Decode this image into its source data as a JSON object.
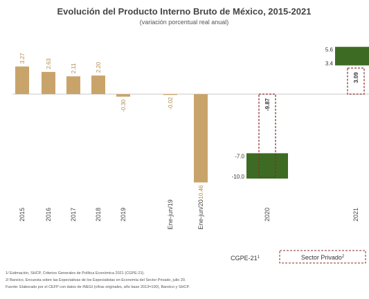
{
  "chart_data": {
    "type": "bar",
    "title": "Evolución del Producto Interno Bruto de México, 2015-2021",
    "subtitle": "(variación porcentual real anual)",
    "categories": [
      "2015",
      "2016",
      "2017",
      "2018",
      "2019",
      "Ene-jun/19",
      "Ene-jun/20",
      "2020",
      "2021"
    ],
    "historical": {
      "values": [
        3.27,
        2.63,
        2.11,
        2.2,
        -0.3,
        -0.02,
        -10.46
      ],
      "labels": [
        "3.27",
        "2.63",
        "2.11",
        "2.20",
        "-0.30",
        "-0.02",
        "-10.46"
      ],
      "color": "#c9a46a"
    },
    "cgpe_ranges": [
      {
        "category": "2020",
        "low": -10.0,
        "high": -7.0,
        "labels": [
          "-7.0",
          "-10.0"
        ]
      },
      {
        "category": "2021",
        "low": 3.4,
        "high": 5.6,
        "labels": [
          "5.6",
          "3.4"
        ]
      }
    ],
    "cgpe_color": "#3d6b23",
    "private_sector": [
      {
        "category": "2020",
        "value": -9.87,
        "label": "-9.87"
      },
      {
        "category": "2021",
        "value": 3.09,
        "label": "3.09"
      }
    ],
    "legend": {
      "cgpe": "CGPE-21",
      "cgpe_sup": "1",
      "private": "Sector Privado",
      "private_sup": "2"
    },
    "ylim": [
      -12,
      6
    ]
  },
  "notes": {
    "n1": "1/ Estimación, SHCP, Criterios Generales de Política Económica 2021 (CGPE-21).",
    "n2": "2/ Banxico, Encuesta sobre las Expectativas de los Especialistas en Economía del Sector Privado, julio 20.",
    "n3": "Fuente: Elaborado por el CEFP con datos de INEGI (cifras originales, año base 2013=100), Banxico y SHCP."
  }
}
